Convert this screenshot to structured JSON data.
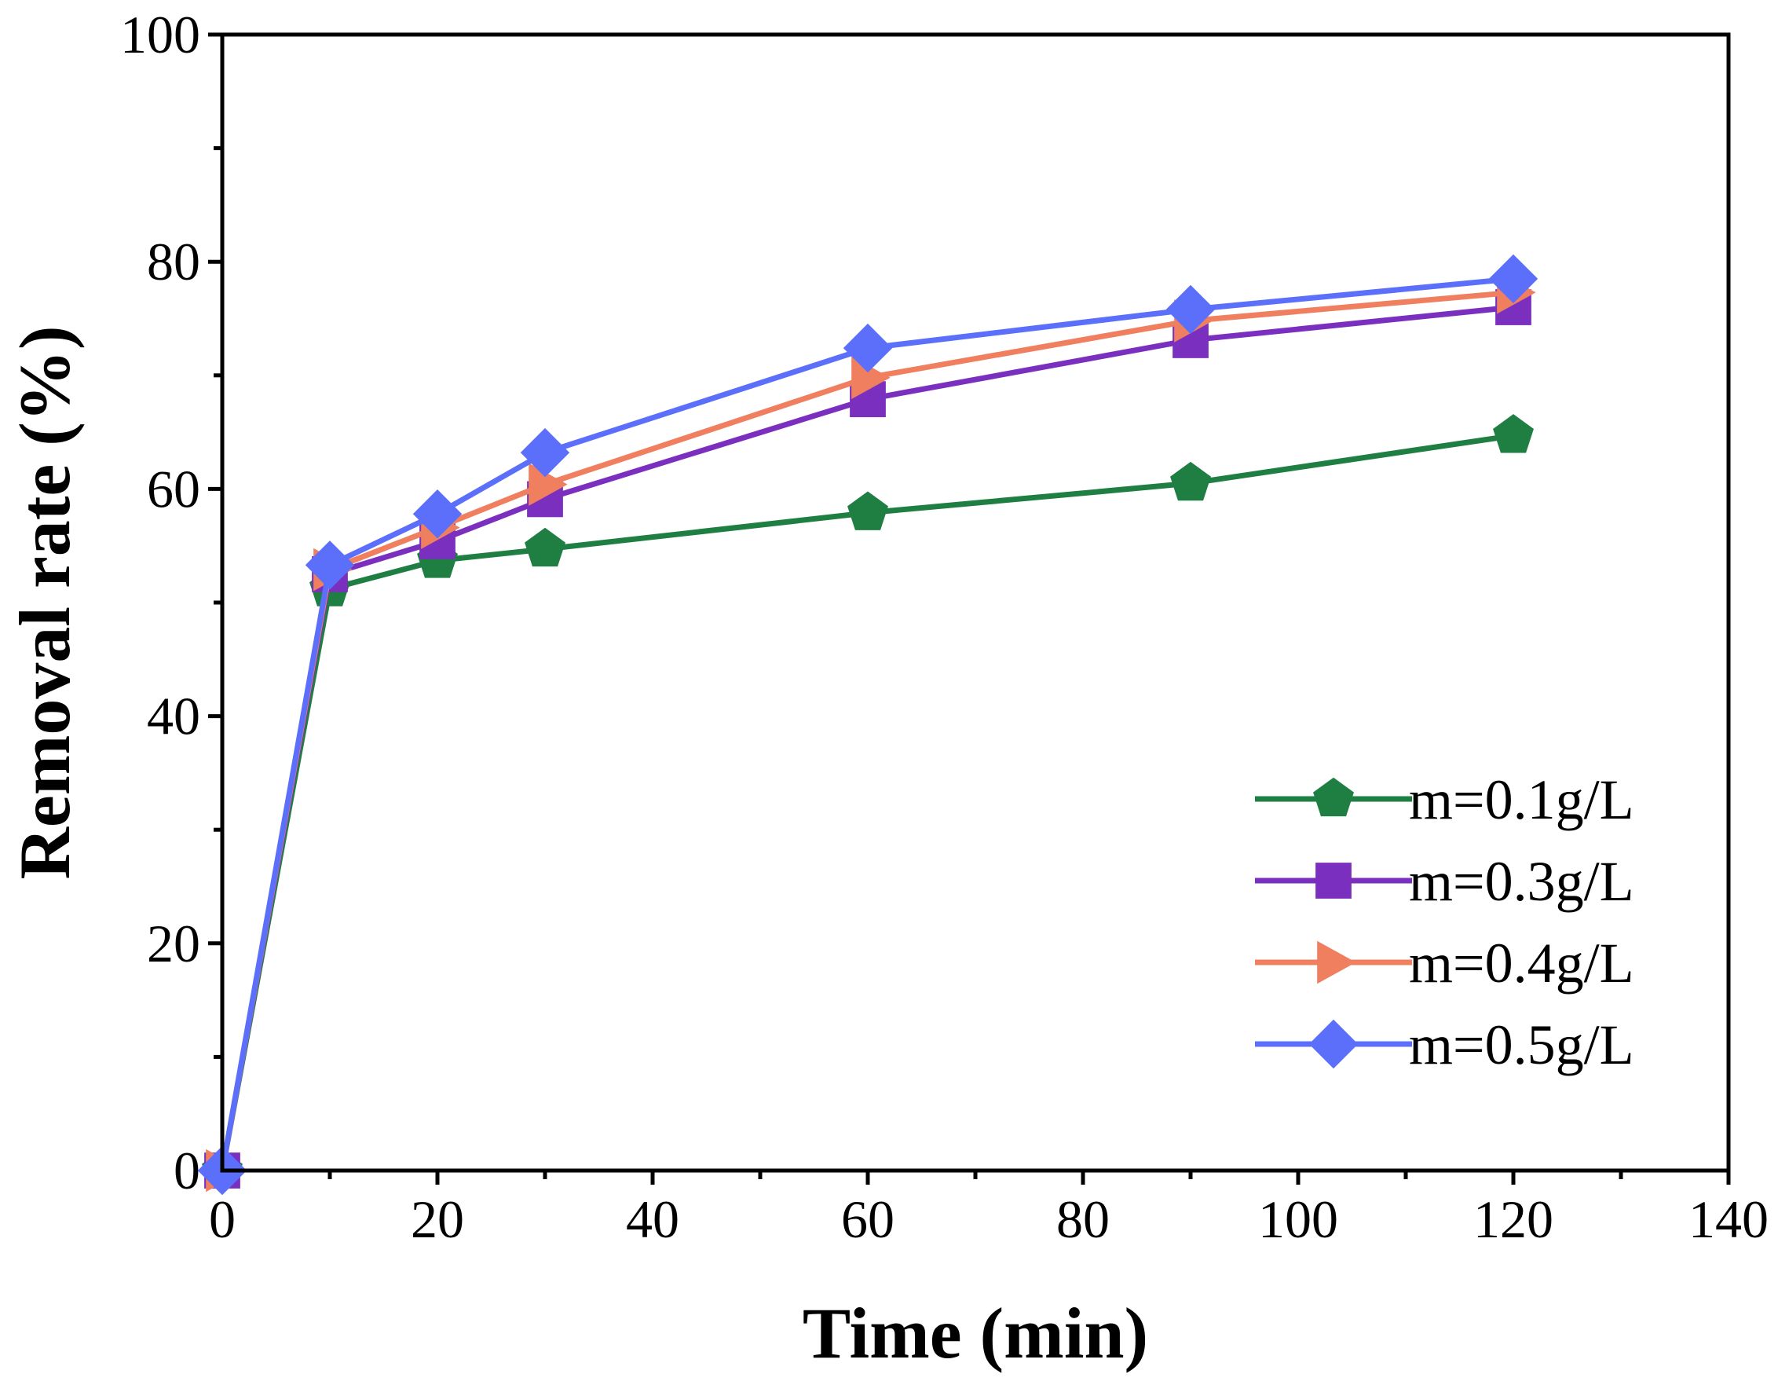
{
  "chart_data": {
    "type": "line",
    "title": "",
    "xlabel": "Time (min)",
    "ylabel": "Removal rate (%)",
    "xlim": [
      0,
      140
    ],
    "ylim": [
      0,
      100
    ],
    "x_ticks": [
      0,
      20,
      40,
      60,
      80,
      100,
      120,
      140
    ],
    "x_tick_labels": [
      "0",
      "20",
      "40",
      "60",
      "80",
      "100",
      "120",
      "140"
    ],
    "y_ticks": [
      0,
      20,
      40,
      60,
      80,
      100
    ],
    "y_tick_labels": [
      "0",
      "20",
      "40",
      "60",
      "80",
      "100"
    ],
    "x_minor_step": 10,
    "y_minor_step": 10,
    "grid": false,
    "legend_position": "bottom-right",
    "x": [
      0,
      10,
      20,
      30,
      60,
      90,
      120
    ],
    "series": [
      {
        "name": "m=0.1g/L",
        "color": "#1f7f43",
        "marker": "pentagon",
        "values": [
          0,
          51.2,
          53.7,
          54.7,
          57.9,
          60.5,
          64.7
        ]
      },
      {
        "name": "m=0.3g/L",
        "color": "#7b2fbf",
        "marker": "square",
        "values": [
          0,
          52.5,
          55.4,
          59.1,
          67.9,
          73.1,
          76.0
        ]
      },
      {
        "name": "m=0.4g/L",
        "color": "#f07f60",
        "marker": "triangle-right",
        "values": [
          0,
          52.9,
          56.6,
          60.4,
          69.8,
          74.8,
          77.3
        ]
      },
      {
        "name": "m=0.5g/L",
        "color": "#5b6ffa",
        "marker": "diamond",
        "values": [
          0,
          53.3,
          57.8,
          63.2,
          72.4,
          75.8,
          78.5
        ]
      }
    ]
  }
}
